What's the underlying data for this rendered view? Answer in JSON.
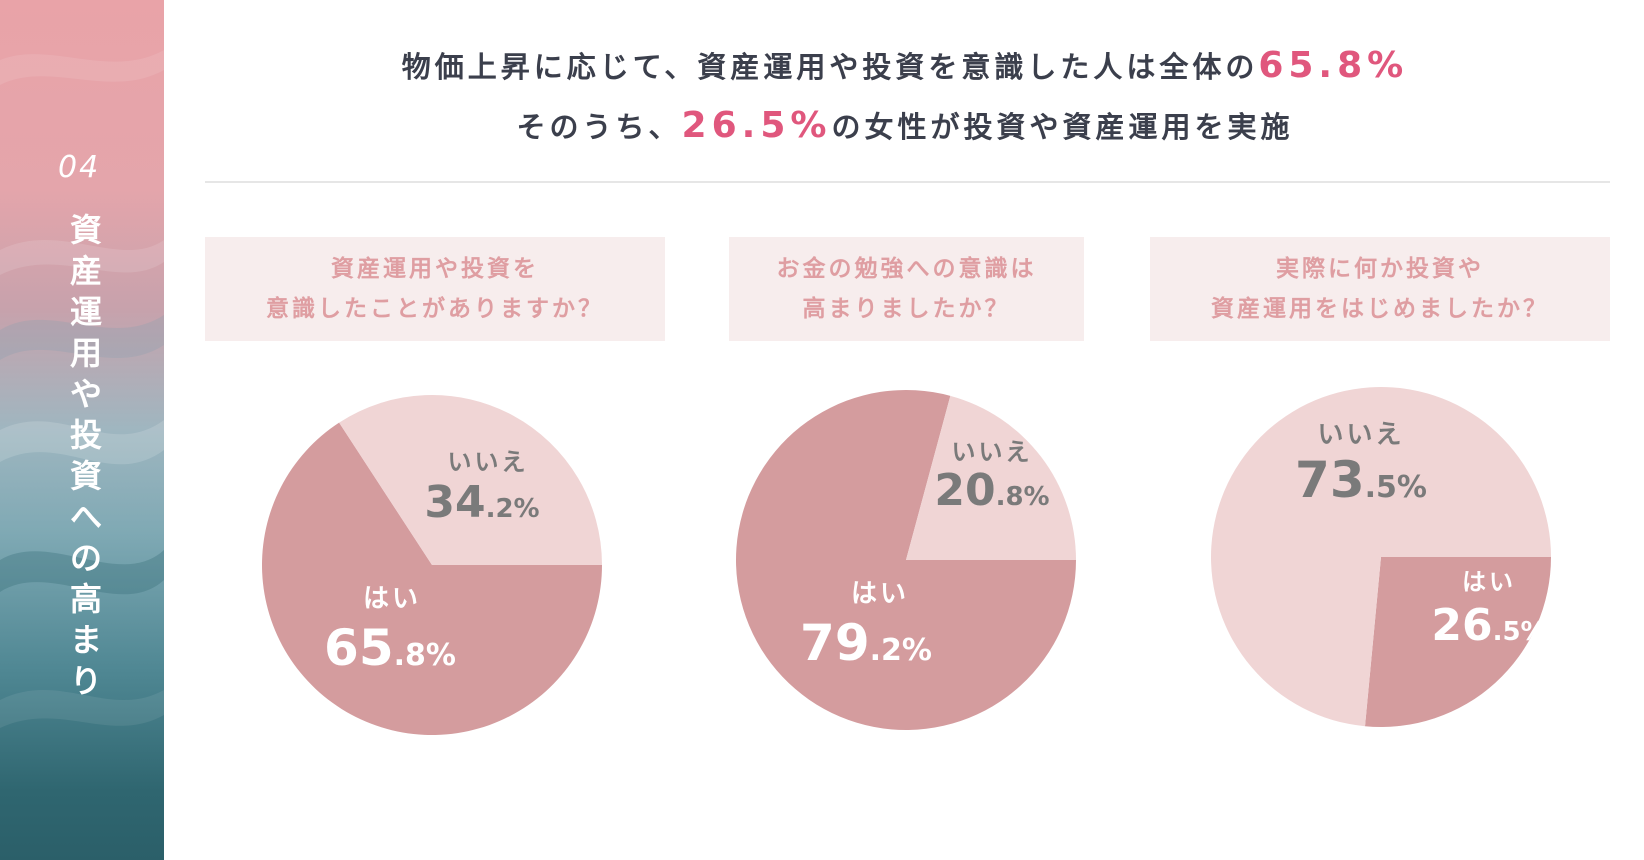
{
  "sidebar": {
    "number": "04",
    "title": "資産運用や投資への高まり"
  },
  "headline": {
    "line1_prefix": "物価上昇に応じて、資産運用や投資を意識した人は全体の",
    "line1_value": "65.8%",
    "line2_prefix": "そのうち、",
    "line2_value": "26.5%",
    "line2_suffix": "の女性が投資や資産運用を実施"
  },
  "colors": {
    "yes": "#d49c9e",
    "no": "#f0d5d5",
    "accent": "#e0577d",
    "question_bg": "#f7eded",
    "question_text": "#df9ea2",
    "no_label": "#7a7a7a",
    "yes_label": "#ffffff"
  },
  "chart_data": [
    {
      "type": "pie",
      "question": [
        "資産運用や投資を",
        "意識したことがありますか？"
      ],
      "slices": [
        {
          "label": "はい",
          "value": 65.8,
          "int": "65",
          "dec": ".8%"
        },
        {
          "label": "いいえ",
          "value": 34.2,
          "int": "34",
          "dec": ".2%"
        }
      ]
    },
    {
      "type": "pie",
      "question": [
        "お金の勉強への意識は",
        "高まりましたか？"
      ],
      "slices": [
        {
          "label": "はい",
          "value": 79.2,
          "int": "79",
          "dec": ".2%"
        },
        {
          "label": "いいえ",
          "value": 20.8,
          "int": "20",
          "dec": ".8%"
        }
      ]
    },
    {
      "type": "pie",
      "question": [
        "実際に何か投資や",
        "資産運用をはじめましたか？"
      ],
      "slices": [
        {
          "label": "はい",
          "value": 26.5,
          "int": "26",
          "dec": ".5%"
        },
        {
          "label": "いいえ",
          "value": 73.5,
          "int": "73",
          "dec": ".5%"
        }
      ]
    }
  ]
}
